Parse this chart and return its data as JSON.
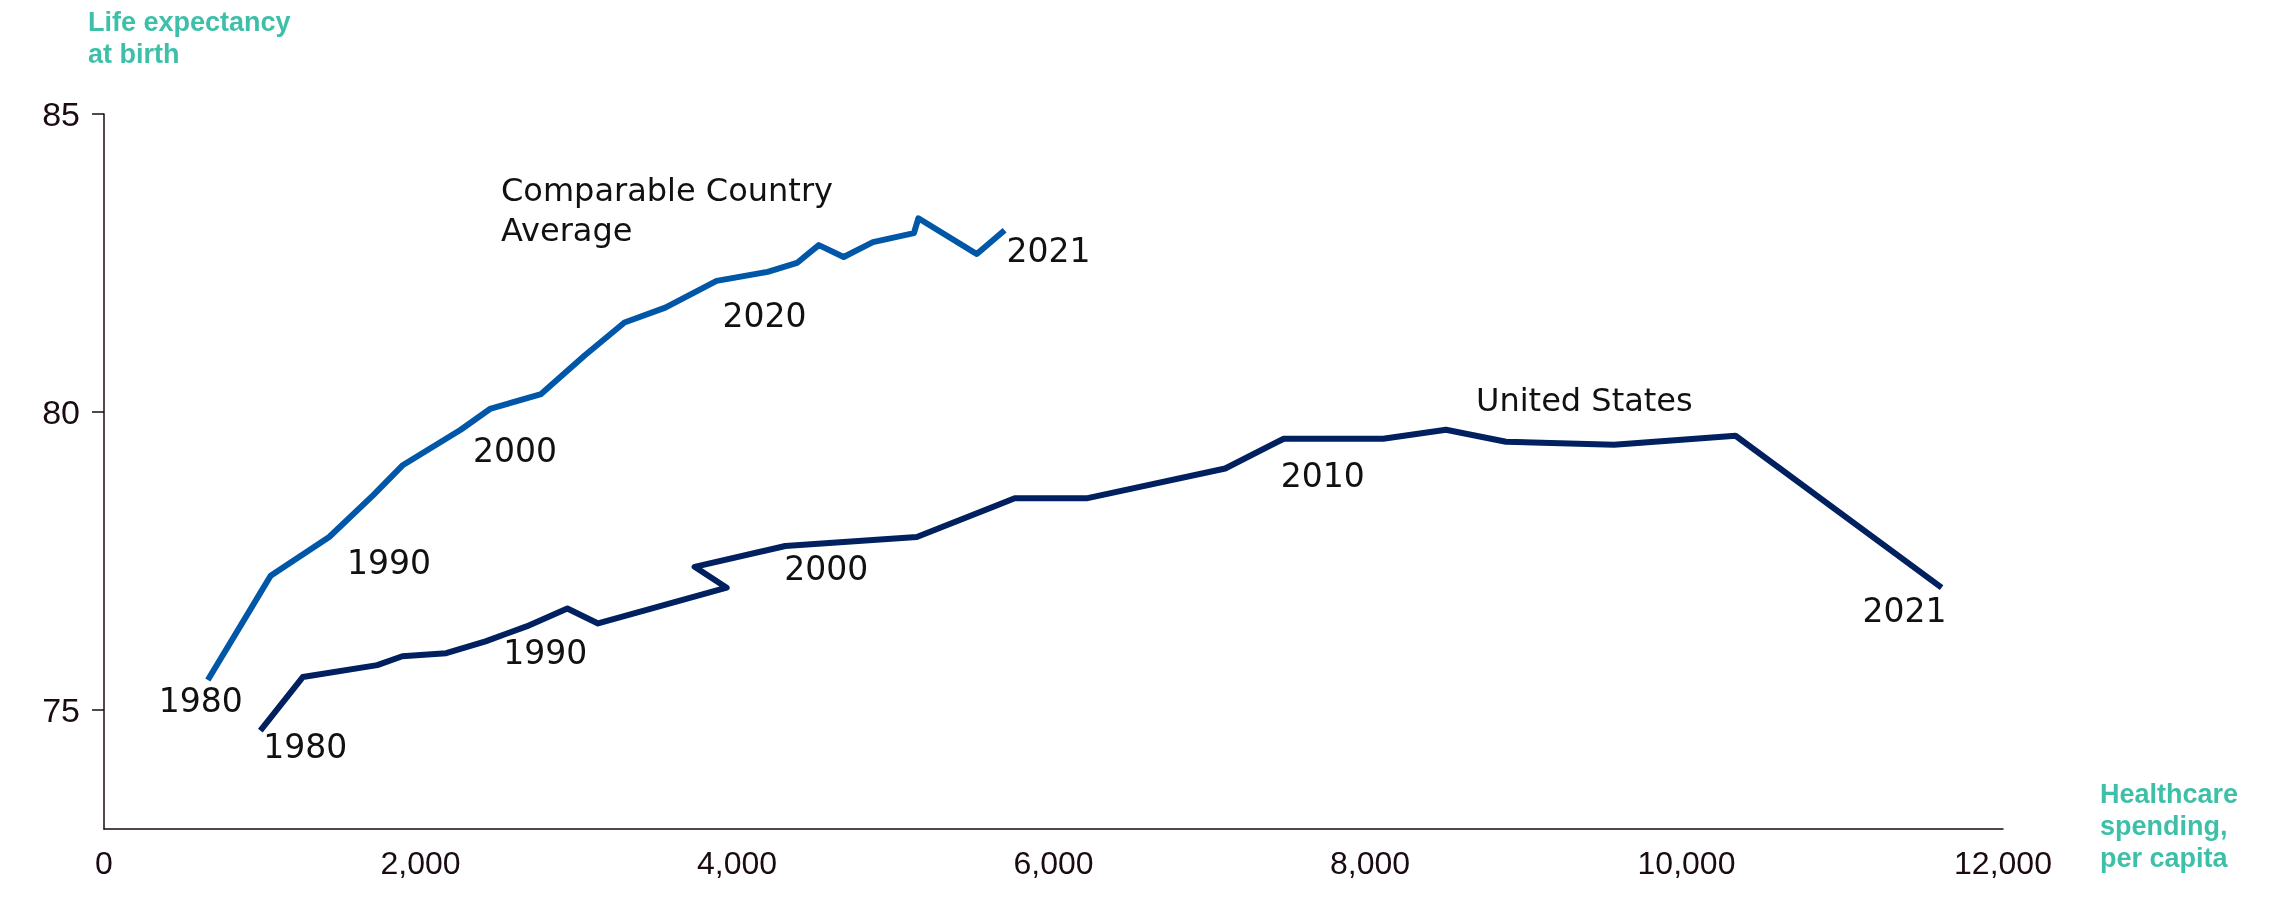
{
  "chart_data": {
    "type": "line",
    "xlabel": "Healthcare\nspending,\nper capita",
    "ylabel": "Life expectancy\nat birth",
    "xlim": [
      0,
      12000
    ],
    "xticks": [
      0,
      {
        "value": 2000,
        "label": "2,000"
      },
      {
        "value": 4000,
        "label": "4,000"
      },
      {
        "value": 6000,
        "label": "6,000"
      },
      {
        "value": 8000,
        "label": "8,000"
      },
      {
        "value": 10000,
        "label": "10,000"
      },
      {
        "value": 12000,
        "label": "12,000"
      }
    ],
    "ylim": [
      73,
      85
    ],
    "yticks": [
      75,
      80,
      85
    ],
    "grid": false,
    "legend": false,
    "marker": "none",
    "line_style": "solid",
    "series": [
      {
        "name": "Comparable Country\nAverage",
        "color": "#0057a8",
        "x": [
          656,
          1053,
          1423,
          1700,
          1885,
          2254,
          2439,
          2762,
          3039,
          3289,
          3547,
          3871,
          4194,
          4379,
          4517,
          4674,
          4859,
          5118,
          5146,
          5515,
          5691
        ],
        "values": [
          75.5,
          77.25,
          77.9,
          78.6,
          79.1,
          79.7,
          80.05,
          80.3,
          80.95,
          81.5,
          81.75,
          82.2,
          82.35,
          82.5,
          82.8,
          82.6,
          82.85,
          83.0,
          83.25,
          82.65,
          83.05
        ]
      },
      {
        "name": "United States",
        "color": "#00205f",
        "x": [
          988,
          1256,
          1727,
          1885,
          2162,
          2411,
          2670,
          2928,
          3122,
          3935,
          3732,
          4305,
          5136,
          5755,
          6208,
          7085,
          7455,
          8083,
          8480,
          8859,
          9542,
          10310,
          11612
        ],
        "values": [
          74.65,
          75.55,
          75.75,
          75.9,
          75.95,
          76.15,
          76.4,
          76.7,
          76.45,
          77.05,
          77.4,
          77.75,
          77.9,
          78.55,
          78.55,
          79.05,
          79.55,
          79.55,
          79.7,
          79.5,
          79.45,
          79.6,
          77.05
        ]
      }
    ],
    "annotations": [
      {
        "text": "1980",
        "x": 656,
        "y": 75.5
      },
      {
        "text": "1990",
        "x": 1700,
        "y": 78.6
      },
      {
        "text": "2000",
        "x": 2439,
        "y": 80.05
      },
      {
        "text": "2020",
        "x": 3871,
        "y": 82.2
      },
      {
        "text": "2021",
        "x": 5691,
        "y": 83.05
      },
      {
        "text": "1980",
        "x": 988,
        "y": 74.65
      },
      {
        "text": "1990",
        "x": 2928,
        "y": 76.7
      },
      {
        "text": "2000",
        "x": 4305,
        "y": 77.75
      },
      {
        "text": "2010",
        "x": 7455,
        "y": 79.55
      },
      {
        "text": "2021",
        "x": 11612,
        "y": 77.05
      }
    ]
  }
}
